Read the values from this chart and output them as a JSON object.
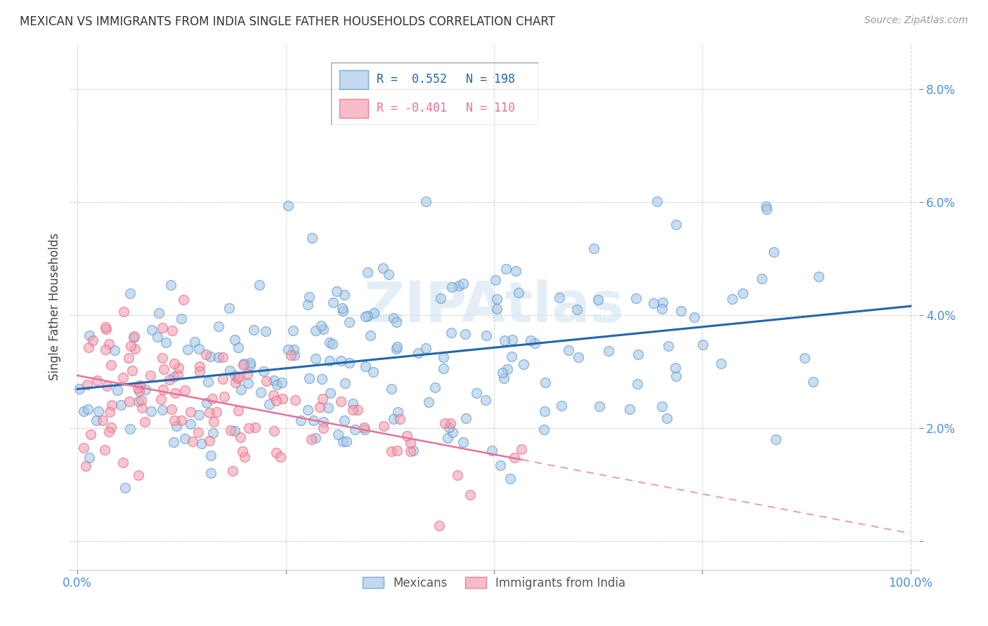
{
  "title": "MEXICAN VS IMMIGRANTS FROM INDIA SINGLE FATHER HOUSEHOLDS CORRELATION CHART",
  "source": "Source: ZipAtlas.com",
  "ylabel": "Single Father Households",
  "blue_color": "#a8c8e8",
  "pink_color": "#f4a0b0",
  "blue_edge_color": "#5590c8",
  "pink_edge_color": "#e06080",
  "blue_line_color": "#2166ac",
  "pink_line_color": "#e8709a",
  "pink_dash_color": "#e8a0b8",
  "axis_color": "#4a90d9",
  "watermark_color": "#c8dff0",
  "ytick_color": "#4a90d9",
  "xtick_color": "#4a90d9",
  "legend_blue_r": "R =  0.552",
  "legend_blue_n": "N = 198",
  "legend_pink_r": "R = -0.401",
  "legend_pink_n": "N = 110",
  "ylim": [
    -0.005,
    0.088
  ],
  "xlim": [
    -0.01,
    1.01
  ],
  "blue_R": 0.552,
  "blue_N": 198,
  "pink_R": -0.401,
  "pink_N": 110,
  "seed_blue": 77,
  "seed_pink": 55,
  "blue_intercept": 0.026,
  "blue_slope": 0.015,
  "pink_intercept": 0.03,
  "pink_slope": -0.028
}
